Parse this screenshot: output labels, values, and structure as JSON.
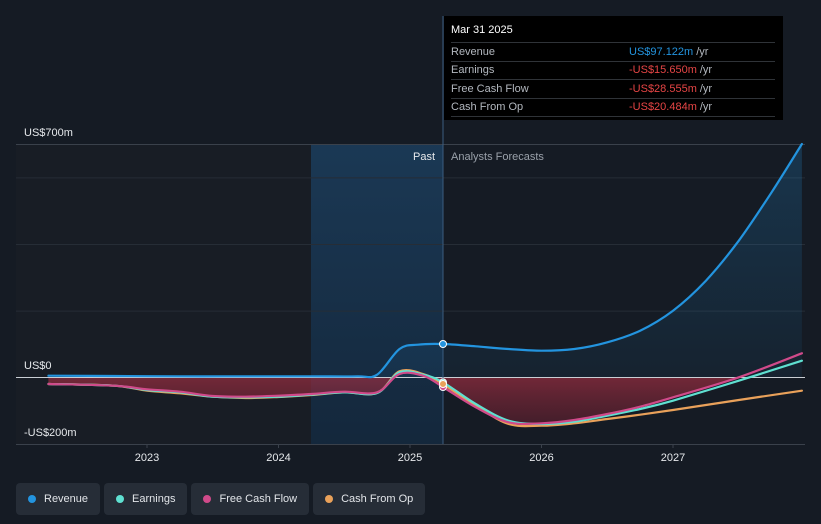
{
  "chart_data": {
    "type": "line",
    "y_axis": {
      "top_label": "US$700m",
      "zero_label": "US$0",
      "bottom_label": "-US$200m",
      "ylim": [
        -200,
        700
      ]
    },
    "x_axis": {
      "tick_labels": [
        "2023",
        "2024",
        "2025",
        "2026",
        "2027"
      ]
    },
    "regions": {
      "past_label": "Past",
      "forecast_label": "Analysts Forecasts"
    },
    "series": [
      {
        "name": "Revenue",
        "color": "#2394df",
        "points": [
          [
            2022.25,
            5
          ],
          [
            2022.75,
            4
          ],
          [
            2023.25,
            3
          ],
          [
            2023.75,
            3
          ],
          [
            2024.25,
            3
          ],
          [
            2024.6,
            3
          ],
          [
            2024.75,
            8
          ],
          [
            2024.92,
            85
          ],
          [
            2025.06,
            98
          ],
          [
            2025.25,
            100
          ],
          [
            2025.5,
            93
          ],
          [
            2025.75,
            85
          ],
          [
            2026.0,
            80
          ],
          [
            2026.25,
            85
          ],
          [
            2026.5,
            105
          ],
          [
            2026.75,
            140
          ],
          [
            2027.0,
            200
          ],
          [
            2027.25,
            290
          ],
          [
            2027.5,
            410
          ],
          [
            2027.75,
            555
          ],
          [
            2027.98,
            700
          ]
        ]
      },
      {
        "name": "Earnings",
        "color": "#5fe0d1",
        "points": [
          [
            2022.25,
            -20
          ],
          [
            2022.75,
            -25
          ],
          [
            2023.0,
            -38
          ],
          [
            2023.25,
            -45
          ],
          [
            2023.5,
            -58
          ],
          [
            2023.75,
            -60
          ],
          [
            2024.0,
            -58
          ],
          [
            2024.25,
            -52
          ],
          [
            2024.5,
            -45
          ],
          [
            2024.75,
            -47
          ],
          [
            2024.92,
            15
          ],
          [
            2025.1,
            8
          ],
          [
            2025.25,
            -15
          ],
          [
            2025.5,
            -80
          ],
          [
            2025.75,
            -130
          ],
          [
            2026.0,
            -140
          ],
          [
            2026.25,
            -133
          ],
          [
            2026.5,
            -115
          ],
          [
            2026.75,
            -95
          ],
          [
            2027.0,
            -70
          ],
          [
            2027.5,
            -10
          ],
          [
            2027.98,
            50
          ]
        ]
      },
      {
        "name": "Free Cash Flow",
        "color": "#d04a8a",
        "points": [
          [
            2022.25,
            -20
          ],
          [
            2022.75,
            -25
          ],
          [
            2023.0,
            -36
          ],
          [
            2023.25,
            -43
          ],
          [
            2023.5,
            -56
          ],
          [
            2023.75,
            -58
          ],
          [
            2024.0,
            -55
          ],
          [
            2024.25,
            -50
          ],
          [
            2024.5,
            -43
          ],
          [
            2024.75,
            -45
          ],
          [
            2024.92,
            10
          ],
          [
            2025.1,
            5
          ],
          [
            2025.25,
            -29
          ],
          [
            2025.5,
            -90
          ],
          [
            2025.75,
            -135
          ],
          [
            2026.0,
            -138
          ],
          [
            2026.25,
            -128
          ],
          [
            2026.5,
            -110
          ],
          [
            2026.75,
            -88
          ],
          [
            2027.0,
            -60
          ],
          [
            2027.5,
            0
          ],
          [
            2027.98,
            72
          ]
        ]
      },
      {
        "name": "Cash From Op",
        "color": "#e9a15a",
        "points": [
          [
            2022.25,
            -20
          ],
          [
            2022.75,
            -25
          ],
          [
            2023.0,
            -40
          ],
          [
            2023.25,
            -48
          ],
          [
            2023.5,
            -58
          ],
          [
            2023.75,
            -62
          ],
          [
            2024.0,
            -59
          ],
          [
            2024.25,
            -53
          ],
          [
            2024.5,
            -45
          ],
          [
            2024.75,
            -47
          ],
          [
            2024.92,
            18
          ],
          [
            2025.1,
            10
          ],
          [
            2025.25,
            -20
          ],
          [
            2025.5,
            -85
          ],
          [
            2025.75,
            -140
          ],
          [
            2026.0,
            -145
          ],
          [
            2026.25,
            -138
          ],
          [
            2026.5,
            -125
          ],
          [
            2026.75,
            -112
          ],
          [
            2027.0,
            -98
          ],
          [
            2027.5,
            -68
          ],
          [
            2027.98,
            -40
          ]
        ]
      }
    ],
    "tooltip": {
      "date": "Mar 31 2025",
      "rows": [
        {
          "label": "Revenue",
          "value": "US$97.122m",
          "unit": "/yr"
        },
        {
          "label": "Earnings",
          "value": "-US$15.650m",
          "unit": "/yr"
        },
        {
          "label": "Free Cash Flow",
          "value": "-US$28.555m",
          "unit": "/yr"
        },
        {
          "label": "Cash From Op",
          "value": "-US$20.484m",
          "unit": "/yr"
        }
      ]
    },
    "legend_position": "bottom-left",
    "grid": true
  },
  "colors": {
    "background": "#151b24",
    "past_shade": "#1a3550",
    "grid": "#2b323c"
  }
}
